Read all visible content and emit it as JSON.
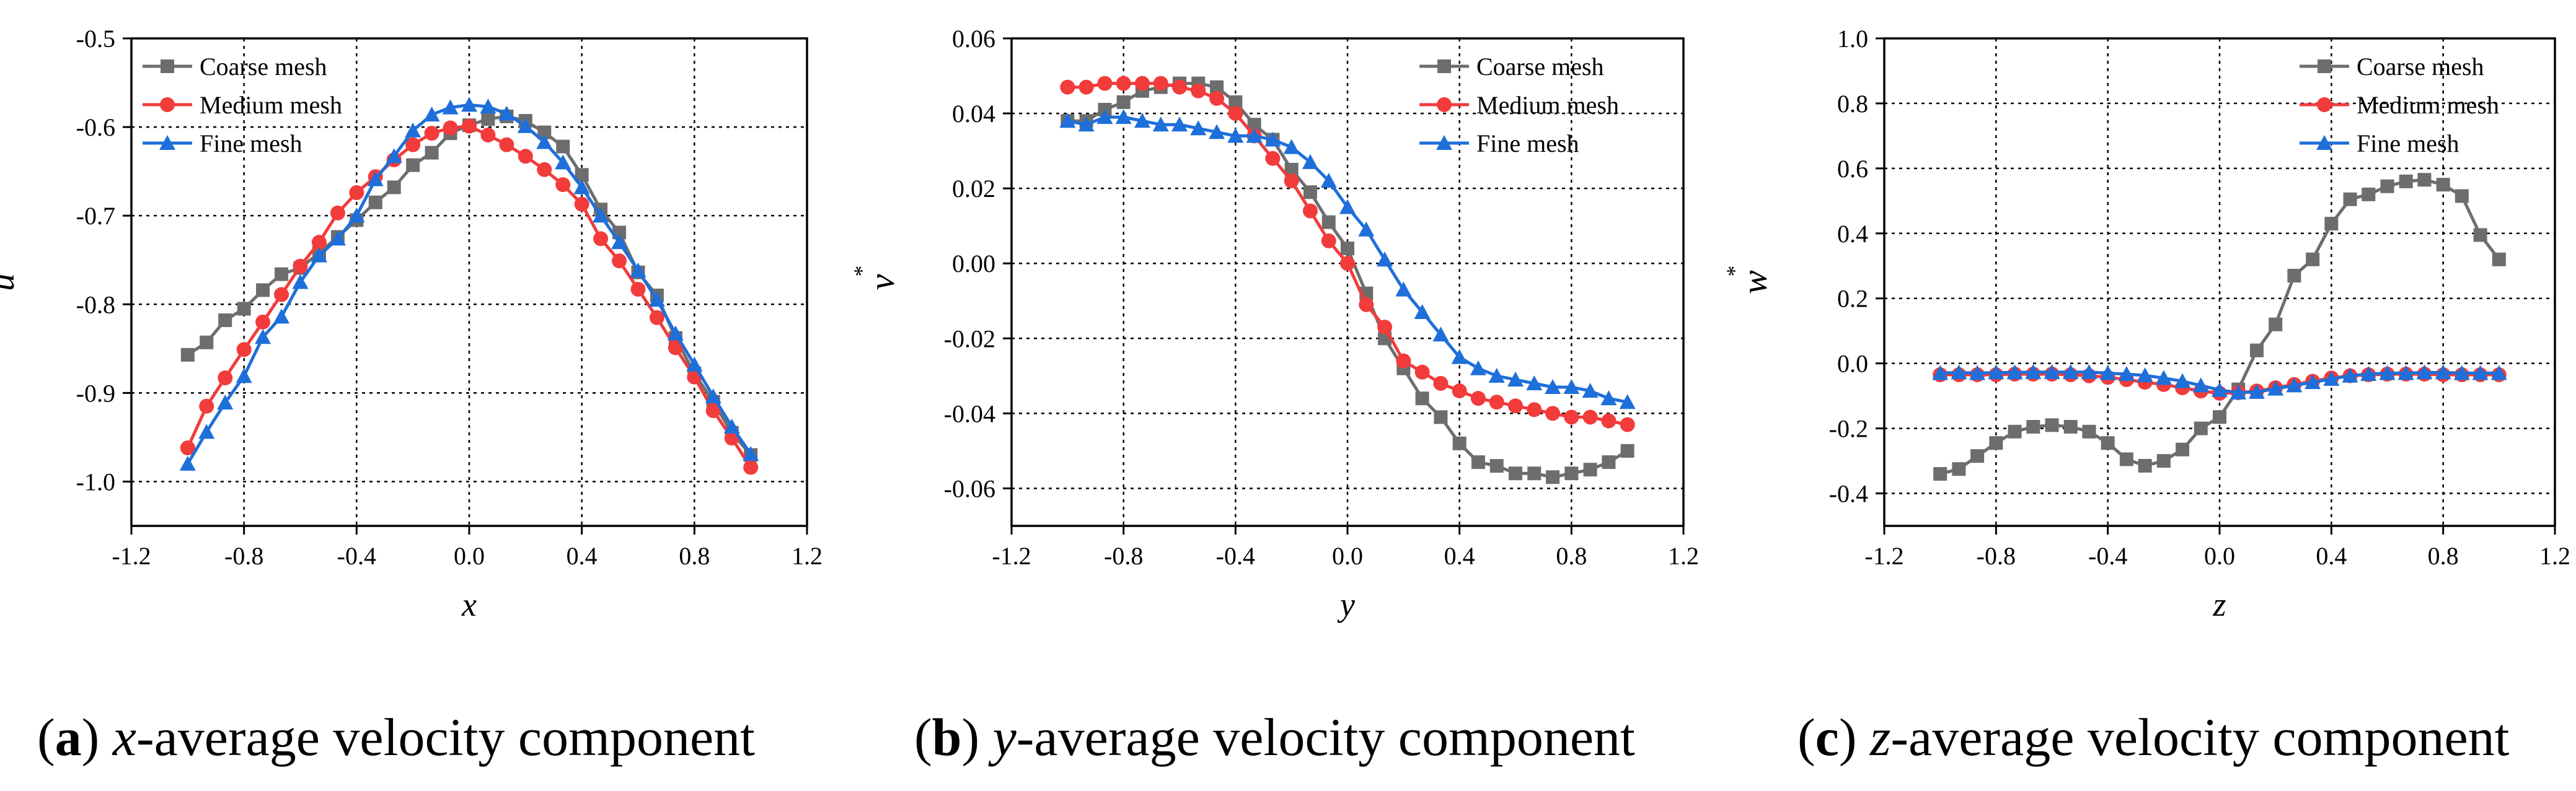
{
  "colors": {
    "coarse": "#6d6d6d",
    "medium": "#f23b3b",
    "fine": "#1e6fd9",
    "grid": "#000000",
    "axis": "#000000"
  },
  "captions": [
    {
      "letter": "a",
      "axis_var": "x",
      "rest": "-average velocity component"
    },
    {
      "letter": "b",
      "axis_var": "y",
      "rest": "-average velocity component"
    },
    {
      "letter": "c",
      "axis_var": "z",
      "rest": "-average velocity component"
    }
  ],
  "chart_data": [
    {
      "type": "line",
      "xlabel": "x",
      "ylabel": "u",
      "ylabel_sup": "*",
      "xlim": [
        -1.2,
        1.2
      ],
      "ylim": [
        -1.05,
        -0.5
      ],
      "xticks": [
        -1.2,
        -0.8,
        -0.4,
        0.0,
        0.4,
        0.8,
        1.2
      ],
      "xtick_labels": [
        "-1.2",
        "-0.8",
        "-0.4",
        "0.0",
        "0.4",
        "0.8",
        "1.2"
      ],
      "yticks": [
        -1.0,
        -0.9,
        -0.8,
        -0.7,
        -0.6,
        -0.5
      ],
      "ytick_labels": [
        "-1.0",
        "-0.9",
        "-0.8",
        "-0.7",
        "-0.6",
        "-0.5"
      ],
      "grid": true,
      "legend_position": "top-left",
      "x": [
        -1.0,
        -0.933,
        -0.867,
        -0.8,
        -0.733,
        -0.667,
        -0.6,
        -0.533,
        -0.467,
        -0.4,
        -0.333,
        -0.267,
        -0.2,
        -0.133,
        -0.067,
        0.0,
        0.067,
        0.133,
        0.2,
        0.267,
        0.333,
        0.4,
        0.467,
        0.533,
        0.6,
        0.667,
        0.733,
        0.8,
        0.867,
        0.933,
        1.0
      ],
      "series": [
        {
          "name": "Coarse mesh",
          "marker": "square",
          "values": [
            -0.857,
            -0.843,
            -0.818,
            -0.805,
            -0.784,
            -0.766,
            -0.759,
            -0.742,
            -0.724,
            -0.705,
            -0.685,
            -0.668,
            -0.643,
            -0.629,
            -0.607,
            -0.598,
            -0.591,
            -0.588,
            -0.593,
            -0.606,
            -0.622,
            -0.654,
            -0.693,
            -0.719,
            -0.764,
            -0.79,
            -0.838,
            -0.878,
            -0.91,
            -0.945,
            -0.97
          ]
        },
        {
          "name": "Medium mesh",
          "marker": "circle",
          "values": [
            -0.962,
            -0.915,
            -0.883,
            -0.851,
            -0.82,
            -0.789,
            -0.757,
            -0.73,
            -0.697,
            -0.674,
            -0.656,
            -0.637,
            -0.62,
            -0.607,
            -0.601,
            -0.599,
            -0.609,
            -0.62,
            -0.633,
            -0.648,
            -0.665,
            -0.687,
            -0.726,
            -0.751,
            -0.783,
            -0.815,
            -0.849,
            -0.882,
            -0.92,
            -0.951,
            -0.984
          ]
        },
        {
          "name": "Fine mesh",
          "marker": "triangle",
          "values": [
            -0.98,
            -0.944,
            -0.911,
            -0.881,
            -0.837,
            -0.814,
            -0.775,
            -0.745,
            -0.726,
            -0.7,
            -0.659,
            -0.633,
            -0.604,
            -0.586,
            -0.578,
            -0.575,
            -0.577,
            -0.585,
            -0.599,
            -0.617,
            -0.64,
            -0.668,
            -0.7,
            -0.73,
            -0.762,
            -0.795,
            -0.833,
            -0.868,
            -0.904,
            -0.938,
            -0.969
          ]
        }
      ]
    },
    {
      "type": "line",
      "xlabel": "y",
      "ylabel": "v",
      "ylabel_sup": "*",
      "xlim": [
        -1.2,
        1.2
      ],
      "ylim": [
        -0.07,
        0.06
      ],
      "xticks": [
        -1.2,
        -0.8,
        -0.4,
        0.0,
        0.4,
        0.8,
        1.2
      ],
      "xtick_labels": [
        "-1.2",
        "-0.8",
        "-0.4",
        "0.0",
        "0.4",
        "0.8",
        "1.2"
      ],
      "yticks": [
        -0.06,
        -0.04,
        -0.02,
        0.0,
        0.02,
        0.04,
        0.06
      ],
      "ytick_labels": [
        "-0.06",
        "-0.04",
        "-0.02",
        "0.00",
        "0.02",
        "0.04",
        "0.06"
      ],
      "grid": true,
      "legend_position": "top-right",
      "x": [
        -1.0,
        -0.933,
        -0.867,
        -0.8,
        -0.733,
        -0.667,
        -0.6,
        -0.533,
        -0.467,
        -0.4,
        -0.333,
        -0.267,
        -0.2,
        -0.133,
        -0.067,
        0.0,
        0.067,
        0.133,
        0.2,
        0.267,
        0.333,
        0.4,
        0.467,
        0.533,
        0.6,
        0.667,
        0.733,
        0.8,
        0.867,
        0.933,
        1.0
      ],
      "series": [
        {
          "name": "Coarse mesh",
          "marker": "square",
          "values": [
            0.038,
            0.038,
            0.041,
            0.043,
            0.046,
            0.047,
            0.048,
            0.048,
            0.047,
            0.043,
            0.037,
            0.033,
            0.025,
            0.019,
            0.011,
            0.004,
            -0.008,
            -0.02,
            -0.028,
            -0.036,
            -0.041,
            -0.048,
            -0.053,
            -0.054,
            -0.056,
            -0.056,
            -0.057,
            -0.056,
            -0.055,
            -0.053,
            -0.05
          ]
        },
        {
          "name": "Medium mesh",
          "marker": "circle",
          "values": [
            0.047,
            0.047,
            0.048,
            0.048,
            0.048,
            0.048,
            0.047,
            0.046,
            0.044,
            0.04,
            0.034,
            0.028,
            0.022,
            0.014,
            0.006,
            0.0,
            -0.011,
            -0.017,
            -0.026,
            -0.029,
            -0.032,
            -0.034,
            -0.036,
            -0.037,
            -0.038,
            -0.039,
            -0.04,
            -0.041,
            -0.041,
            -0.042,
            -0.043
          ]
        },
        {
          "name": "Fine mesh",
          "marker": "triangle",
          "values": [
            0.038,
            0.037,
            0.039,
            0.039,
            0.038,
            0.037,
            0.037,
            0.036,
            0.035,
            0.034,
            0.034,
            0.033,
            0.031,
            0.027,
            0.022,
            0.015,
            0.009,
            0.001,
            -0.007,
            -0.013,
            -0.019,
            -0.025,
            -0.028,
            -0.03,
            -0.031,
            -0.032,
            -0.033,
            -0.033,
            -0.034,
            -0.036,
            -0.037
          ]
        }
      ]
    },
    {
      "type": "line",
      "xlabel": "z",
      "ylabel": "w",
      "ylabel_sup": "*",
      "xlim": [
        -1.2,
        1.2
      ],
      "ylim": [
        -0.5,
        1.0
      ],
      "xticks": [
        -1.2,
        -0.8,
        -0.4,
        0.0,
        0.4,
        0.8,
        1.2
      ],
      "xtick_labels": [
        "-1.2",
        "-0.8",
        "-0.4",
        "0.0",
        "0.4",
        "0.8",
        "1.2"
      ],
      "yticks": [
        -0.4,
        -0.2,
        0.0,
        0.2,
        0.4,
        0.6,
        0.8,
        1.0
      ],
      "ytick_labels": [
        "-0.4",
        "-0.2",
        "0.0",
        "0.2",
        "0.4",
        "0.6",
        "0.8",
        "1.0"
      ],
      "grid": true,
      "legend_position": "top-right",
      "x": [
        -1.0,
        -0.933,
        -0.867,
        -0.8,
        -0.733,
        -0.667,
        -0.6,
        -0.533,
        -0.467,
        -0.4,
        -0.333,
        -0.267,
        -0.2,
        -0.133,
        -0.067,
        0.0,
        0.067,
        0.133,
        0.2,
        0.267,
        0.333,
        0.4,
        0.467,
        0.533,
        0.6,
        0.667,
        0.733,
        0.8,
        0.867,
        0.933,
        1.0
      ],
      "series": [
        {
          "name": "Coarse mesh",
          "marker": "square",
          "values": [
            -0.34,
            -0.325,
            -0.285,
            -0.245,
            -0.21,
            -0.195,
            -0.19,
            -0.195,
            -0.21,
            -0.245,
            -0.295,
            -0.315,
            -0.3,
            -0.265,
            -0.2,
            -0.165,
            -0.08,
            0.04,
            0.12,
            0.27,
            0.32,
            0.43,
            0.505,
            0.52,
            0.545,
            0.56,
            0.565,
            0.55,
            0.515,
            0.395,
            0.32
          ]
        },
        {
          "name": "Medium mesh",
          "marker": "circle",
          "values": [
            -0.035,
            -0.035,
            -0.035,
            -0.035,
            -0.033,
            -0.033,
            -0.033,
            -0.035,
            -0.038,
            -0.043,
            -0.05,
            -0.058,
            -0.065,
            -0.075,
            -0.085,
            -0.092,
            -0.09,
            -0.085,
            -0.075,
            -0.065,
            -0.055,
            -0.045,
            -0.038,
            -0.035,
            -0.033,
            -0.033,
            -0.033,
            -0.035,
            -0.035,
            -0.035,
            -0.035
          ]
        },
        {
          "name": "Fine mesh",
          "marker": "triangle",
          "values": [
            -0.03,
            -0.028,
            -0.03,
            -0.028,
            -0.028,
            -0.027,
            -0.027,
            -0.027,
            -0.027,
            -0.03,
            -0.033,
            -0.037,
            -0.045,
            -0.055,
            -0.068,
            -0.082,
            -0.09,
            -0.088,
            -0.078,
            -0.068,
            -0.058,
            -0.048,
            -0.038,
            -0.033,
            -0.03,
            -0.03,
            -0.028,
            -0.028,
            -0.03,
            -0.03,
            -0.03
          ]
        }
      ]
    }
  ]
}
